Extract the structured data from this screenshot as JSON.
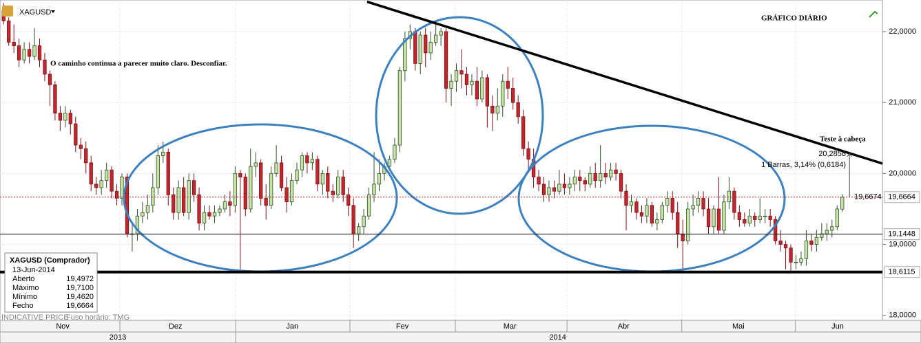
{
  "header": {
    "symbol": "XAGUSD"
  },
  "chart_data": {
    "type": "candlestick",
    "title": "GRÁFICO DIÁRIO",
    "subtitle": "O caminho continua a parecer muito claro. Desconfiar.",
    "open": [
      22.3,
      22.15,
      21.85,
      21.8,
      21.6,
      21.75,
      21.65,
      21.8,
      21.6,
      21.4,
      21.25,
      20.85,
      20.75,
      20.85,
      20.7,
      20.4,
      20.35,
      20.15,
      19.85,
      19.8,
      19.9,
      20.05,
      19.75,
      19.65,
      19.95,
      19.15,
      19.15,
      19.4,
      19.45,
      19.55,
      19.8,
      20.25,
      20.3,
      19.7,
      19.45,
      19.8,
      19.45,
      19.9,
      19.7,
      19.3,
      19.45,
      19.4,
      19.45,
      19.5,
      19.6,
      19.55,
      20.0,
      19.95,
      19.5,
      20.1,
      20.15,
      19.65,
      19.55,
      20.0,
      20.15,
      19.8,
      19.6,
      19.9,
      20.05,
      20.25,
      20.15,
      20.2,
      19.85,
      20.0,
      19.75,
      19.7,
      19.95,
      19.7,
      19.55,
      19.15,
      19.25,
      19.4,
      19.7,
      19.85,
      20.0,
      20.1,
      20.2,
      20.4,
      21.45,
      21.9,
      22.0,
      21.55,
      21.95,
      21.7,
      21.85,
      21.95,
      22.0,
      21.2,
      21.3,
      21.45,
      21.4,
      21.25,
      21.3,
      21.05,
      21.35,
      20.95,
      20.85,
      20.95,
      21.3,
      21.2,
      21.0,
      20.8,
      20.35,
      20.2,
      19.95,
      19.85,
      19.7,
      19.8,
      19.75,
      19.85,
      19.8,
      19.85,
      19.95,
      19.9,
      19.85,
      20.0,
      19.9,
      20.0,
      19.95,
      20.05,
      20.0,
      19.75,
      19.55,
      19.6,
      19.45,
      19.4,
      19.55,
      19.3,
      19.35,
      19.55,
      19.65,
      19.45,
      19.15,
      19.05,
      19.5,
      19.55,
      19.65,
      19.5,
      19.25,
      19.5,
      19.2,
      19.6,
      19.75,
      19.45,
      19.35,
      19.3,
      19.4,
      19.35,
      19.4,
      19.4,
      19.35,
      19.05,
      19.0,
      18.95,
      18.75,
      18.75,
      18.8,
      19.05,
      19.0,
      19.1,
      19.15,
      19.2,
      19.25,
      19.4972
    ],
    "high": [
      22.4,
      22.2,
      22.1,
      21.9,
      21.85,
      21.85,
      22.05,
      21.9,
      21.7,
      21.45,
      21.3,
      20.95,
      20.95,
      20.9,
      20.8,
      20.5,
      20.45,
      20.25,
      19.95,
      20.05,
      20.15,
      20.1,
      19.85,
      20.0,
      20.0,
      19.3,
      19.5,
      19.6,
      19.7,
      20.0,
      20.4,
      20.45,
      20.35,
      19.8,
      19.9,
      19.95,
      20.0,
      20.0,
      19.8,
      19.55,
      19.55,
      19.55,
      19.55,
      19.7,
      19.75,
      20.1,
      20.05,
      20.0,
      20.35,
      20.3,
      20.2,
      19.85,
      20.1,
      20.4,
      20.25,
      19.95,
      20.0,
      20.15,
      20.3,
      20.3,
      20.3,
      20.25,
      20.05,
      20.1,
      19.85,
      20.05,
      20.05,
      19.8,
      19.65,
      19.3,
      19.5,
      19.8,
      20.3,
      20.2,
      20.15,
      20.25,
      20.5,
      21.5,
      22.0,
      22.1,
      22.05,
      22.0,
      22.05,
      22.0,
      22.1,
      22.05,
      22.05,
      21.4,
      21.55,
      21.75,
      21.5,
      21.4,
      21.5,
      21.45,
      21.4,
      21.1,
      21.2,
      21.4,
      21.5,
      21.35,
      21.1,
      20.9,
      20.45,
      20.35,
      20.05,
      19.95,
      19.9,
      19.9,
      20.05,
      20.0,
      19.95,
      20.05,
      20.05,
      19.95,
      20.1,
      20.15,
      20.4,
      20.15,
      20.15,
      20.15,
      20.05,
      19.85,
      19.7,
      19.65,
      19.55,
      19.65,
      19.6,
      19.45,
      19.6,
      19.75,
      19.75,
      19.6,
      19.35,
      19.6,
      19.7,
      19.75,
      19.75,
      19.65,
      19.55,
      19.95,
      19.7,
      19.95,
      19.8,
      19.55,
      19.45,
      19.5,
      19.45,
      19.65,
      19.5,
      19.5,
      19.4,
      19.2,
      19.05,
      19.0,
      18.85,
      18.9,
      19.2,
      19.15,
      19.2,
      19.3,
      19.3,
      19.35,
      19.55,
      19.71
    ],
    "low": [
      22.1,
      21.8,
      21.7,
      21.5,
      21.55,
      21.55,
      21.6,
      21.5,
      21.3,
      20.95,
      20.75,
      20.6,
      20.65,
      20.55,
      20.3,
      20.2,
      20.0,
      19.75,
      19.7,
      19.7,
      19.8,
      19.65,
      19.55,
      19.55,
      19.1,
      18.9,
      19.05,
      19.3,
      19.35,
      19.45,
      19.7,
      20.15,
      19.55,
      19.35,
      19.35,
      19.4,
      19.35,
      19.6,
      19.2,
      19.2,
      19.35,
      19.3,
      19.4,
      19.45,
      19.4,
      19.45,
      18.65,
      19.4,
      19.45,
      19.95,
      19.55,
      19.35,
      19.5,
      19.95,
      19.75,
      19.45,
      19.55,
      19.85,
      19.95,
      20.0,
      20.05,
      19.75,
      19.7,
      19.65,
      19.6,
      19.65,
      19.6,
      19.4,
      18.95,
      19.05,
      19.15,
      19.35,
      19.6,
      19.75,
      19.9,
      20.05,
      20.15,
      20.3,
      21.3,
      21.75,
      21.45,
      21.4,
      21.5,
      21.6,
      21.8,
      21.8,
      21.0,
      20.95,
      21.15,
      21.2,
      21.1,
      21.1,
      20.95,
      21.0,
      20.65,
      20.6,
      20.75,
      20.8,
      21.05,
      20.9,
      20.7,
      20.25,
      20.05,
      19.8,
      19.75,
      19.6,
      19.6,
      19.65,
      19.7,
      19.7,
      19.7,
      19.75,
      19.75,
      19.75,
      19.8,
      19.8,
      19.8,
      19.85,
      19.9,
      19.9,
      19.65,
      19.2,
      19.45,
      19.35,
      19.3,
      19.3,
      19.25,
      19.2,
      19.3,
      19.45,
      19.35,
      18.95,
      18.65,
      19.0,
      19.4,
      19.45,
      19.4,
      19.15,
      19.15,
      19.15,
      19.15,
      19.5,
      19.35,
      19.25,
      19.25,
      19.25,
      19.25,
      19.3,
      19.3,
      19.25,
      19.0,
      18.9,
      18.65,
      18.6,
      18.65,
      18.7,
      18.7,
      18.9,
      18.9,
      19.05,
      19.05,
      19.1,
      19.2,
      19.462
    ],
    "close": [
      22.15,
      21.85,
      21.8,
      21.6,
      21.75,
      21.65,
      21.8,
      21.6,
      21.4,
      21.25,
      20.85,
      20.75,
      20.85,
      20.7,
      20.4,
      20.35,
      20.15,
      19.85,
      19.8,
      19.9,
      20.05,
      19.75,
      19.65,
      19.95,
      19.15,
      19.15,
      19.4,
      19.45,
      19.55,
      19.8,
      20.25,
      20.3,
      19.7,
      19.45,
      19.8,
      19.45,
      19.9,
      19.7,
      19.3,
      19.45,
      19.4,
      19.45,
      19.5,
      19.6,
      19.55,
      20.0,
      19.95,
      19.5,
      20.1,
      20.15,
      19.65,
      19.55,
      20.0,
      20.15,
      19.8,
      19.6,
      19.9,
      20.05,
      20.25,
      20.15,
      20.2,
      19.85,
      20.0,
      19.75,
      19.7,
      19.95,
      19.7,
      19.55,
      19.15,
      19.25,
      19.4,
      19.7,
      19.85,
      20.0,
      20.1,
      20.2,
      20.4,
      21.45,
      21.9,
      22.0,
      21.55,
      21.95,
      21.7,
      21.85,
      21.95,
      22.0,
      21.2,
      21.3,
      21.45,
      21.4,
      21.25,
      21.3,
      21.05,
      21.35,
      20.95,
      20.85,
      20.95,
      21.3,
      21.2,
      21.0,
      20.8,
      20.35,
      20.2,
      19.95,
      19.85,
      19.7,
      19.8,
      19.75,
      19.85,
      19.8,
      19.85,
      19.95,
      19.9,
      19.85,
      20.0,
      19.9,
      20.0,
      19.95,
      20.05,
      20.0,
      19.75,
      19.55,
      19.6,
      19.45,
      19.4,
      19.55,
      19.3,
      19.35,
      19.55,
      19.65,
      19.45,
      19.15,
      19.05,
      19.5,
      19.55,
      19.65,
      19.5,
      19.25,
      19.5,
      19.2,
      19.6,
      19.75,
      19.45,
      19.35,
      19.3,
      19.4,
      19.35,
      19.4,
      19.4,
      19.35,
      19.05,
      19.0,
      18.95,
      18.75,
      18.75,
      18.8,
      19.05,
      19.0,
      19.1,
      19.15,
      19.2,
      19.25,
      19.5,
      19.6664
    ],
    "up_color": "#c7e4a8",
    "down_color": "#c1272d",
    "ylim": [
      17.94,
      22.445
    ],
    "yticks": [
      {
        "value": 18,
        "label": "18,0000"
      },
      {
        "value": 19,
        "label": "19,0000"
      },
      {
        "value": 20,
        "label": "20,0000"
      },
      {
        "value": 21,
        "label": "21,0000"
      },
      {
        "value": 22,
        "label": "22,0000"
      }
    ],
    "xlim": [
      -0.7,
      170.8
    ],
    "xticks": [
      {
        "value": 11.5,
        "label": "Nov"
      },
      {
        "value": 33.4,
        "label": "Dez"
      },
      {
        "value": 56.1,
        "label": "Jan"
      },
      {
        "value": 77.5,
        "label": "Fev"
      },
      {
        "value": 98.4,
        "label": "Mar"
      },
      {
        "value": 120.5,
        "label": "Abr"
      },
      {
        "value": 142.8,
        "label": "Mai"
      },
      {
        "value": 162.1,
        "label": "Jun"
      }
    ],
    "xgrid": [
      22.6,
      45.1,
      67.3,
      87.8,
      109.5,
      131.8,
      153.9
    ],
    "years": [
      {
        "value": 22.2,
        "label": "2013"
      },
      {
        "value": 107.7,
        "label": "2014"
      }
    ],
    "year_divider": 45.1,
    "grid": true,
    "levels": [
      {
        "value": 19.6664,
        "label": "19,6664",
        "color": "#c1272d",
        "width": 1,
        "dash": true
      },
      {
        "value": 19.1448,
        "label": "19,1448",
        "color": "#000000",
        "width": 1,
        "dash": false
      },
      {
        "value": 18.6115,
        "label": "18,6115",
        "color": "#000000",
        "width": 4,
        "dash": false
      }
    ],
    "cursor_value": {
      "value": 19.6674,
      "label": "19,6674"
    },
    "trendline": {
      "x": [
        70.65,
        170.8
      ],
      "y": [
        22.42,
        20.14
      ]
    },
    "callout": {
      "title": "Teste à cabeça",
      "value": 20.2858,
      "value_label": "20,2858",
      "detail": "1 Barras, 3,14% (0,6184)",
      "x": 164.4
    }
  },
  "info_box": {
    "title": "XAGUSD (Comprador)",
    "date": "13-Jun-2014",
    "rows": [
      {
        "label": "Aberto",
        "value": "19,4972"
      },
      {
        "label": "Máximo",
        "value": "19,7100"
      },
      {
        "label": "Mínimo",
        "value": "19,4620"
      },
      {
        "label": "Fecho",
        "value": "19,6664"
      }
    ]
  },
  "footer": {
    "source": "INDICATIVE PRICE",
    "timezone": "Fuso horário: TMG"
  }
}
